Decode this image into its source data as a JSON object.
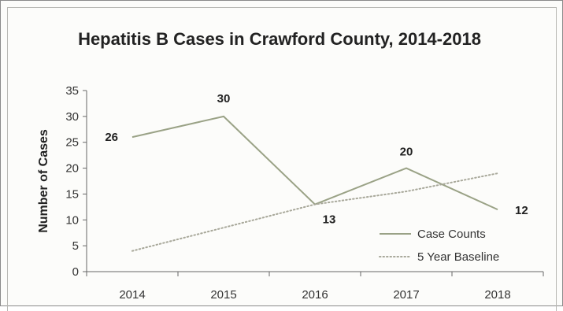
{
  "chart_data": {
    "type": "line",
    "title": "Hepatitis B Cases in Crawford County, 2014-2018",
    "xlabel": "",
    "ylabel": "Number of Cases",
    "categories": [
      "2014",
      "2015",
      "2016",
      "2017",
      "2018"
    ],
    "ylim": [
      0,
      35
    ],
    "yticks": [
      0,
      5,
      10,
      15,
      20,
      25,
      30,
      35
    ],
    "grid": false,
    "legend": "bottom-right",
    "series": [
      {
        "name": "Case Counts",
        "values": [
          26,
          30,
          13,
          20,
          12
        ],
        "style": "solid",
        "color": "#9aa286",
        "labels": [
          "26",
          "30",
          "13",
          "20",
          "12"
        ]
      },
      {
        "name": "5 Year Baseline",
        "values": [
          4,
          8.5,
          13,
          15.5,
          19
        ],
        "style": "dotted",
        "color": "#a8a89a"
      }
    ]
  }
}
